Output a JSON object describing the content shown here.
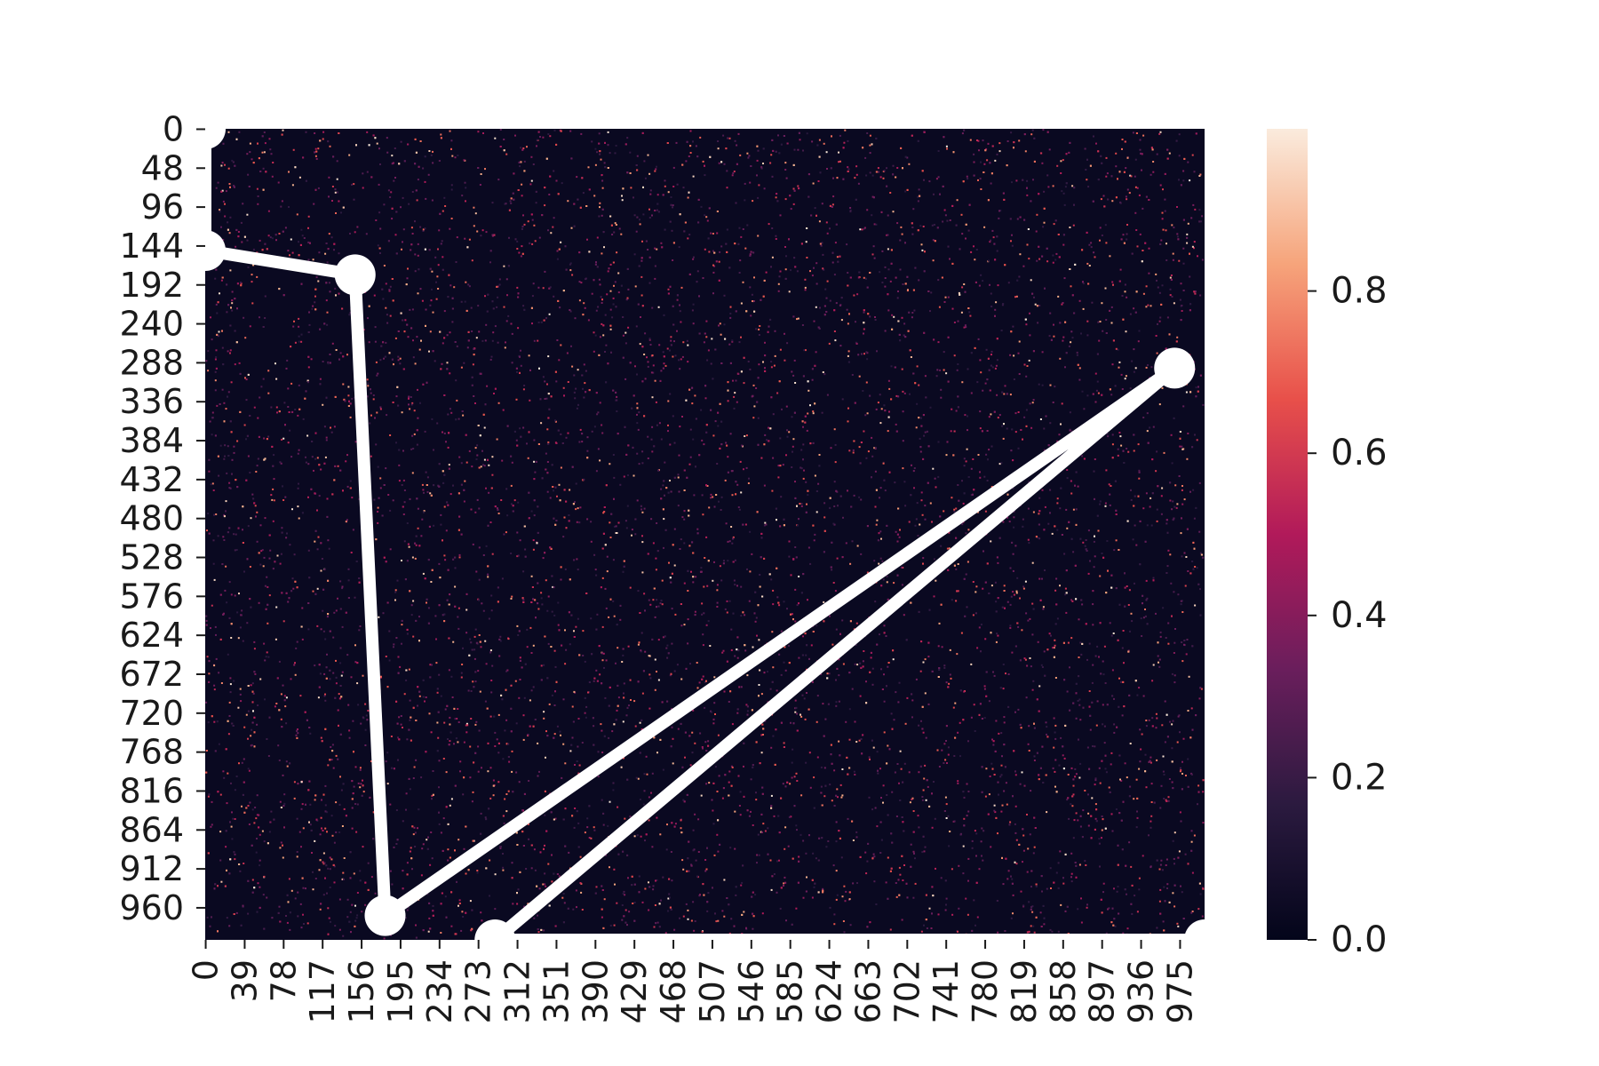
{
  "chart_data": {
    "type": "heatmap",
    "title": "",
    "xlabel": "",
    "ylabel": "",
    "heatmap": {
      "description_rows": 1000,
      "description_cols": 1000,
      "value_range": [
        0.0,
        1.0
      ],
      "distribution": "mostly near 0 with sparse bright random speckles",
      "colormap": "rocket"
    },
    "x_ticks": [
      0,
      39,
      78,
      117,
      156,
      195,
      234,
      273,
      312,
      351,
      390,
      429,
      468,
      507,
      546,
      585,
      624,
      663,
      702,
      741,
      780,
      819,
      858,
      897,
      936,
      975
    ],
    "y_ticks": [
      0,
      48,
      96,
      144,
      192,
      240,
      288,
      336,
      384,
      432,
      480,
      528,
      576,
      624,
      672,
      720,
      768,
      816,
      864,
      912,
      960
    ],
    "xlim": [
      0,
      1000
    ],
    "ylim": [
      0,
      1000
    ],
    "colorbar": {
      "ticks": [
        "0.0",
        "0.2",
        "0.4",
        "0.6",
        "0.8"
      ],
      "tick_values": [
        0.0,
        0.2,
        0.4,
        0.6,
        0.8
      ],
      "range": [
        0.0,
        1.0
      ],
      "colors": [
        "#03051a",
        "#2b1a3f",
        "#6a1e5c",
        "#b11a5a",
        "#e8504a",
        "#f6a47b",
        "#faebdd"
      ]
    },
    "path_series": {
      "color": "#ffffff",
      "points": [
        {
          "x": 0,
          "y": 0
        },
        {
          "x": 0,
          "y": 150
        },
        {
          "x": 150,
          "y": 180
        },
        {
          "x": 180,
          "y": 970
        },
        {
          "x": 970,
          "y": 295
        },
        {
          "x": 290,
          "y": 1000
        },
        {
          "x": 1000,
          "y": 1000
        }
      ]
    }
  }
}
